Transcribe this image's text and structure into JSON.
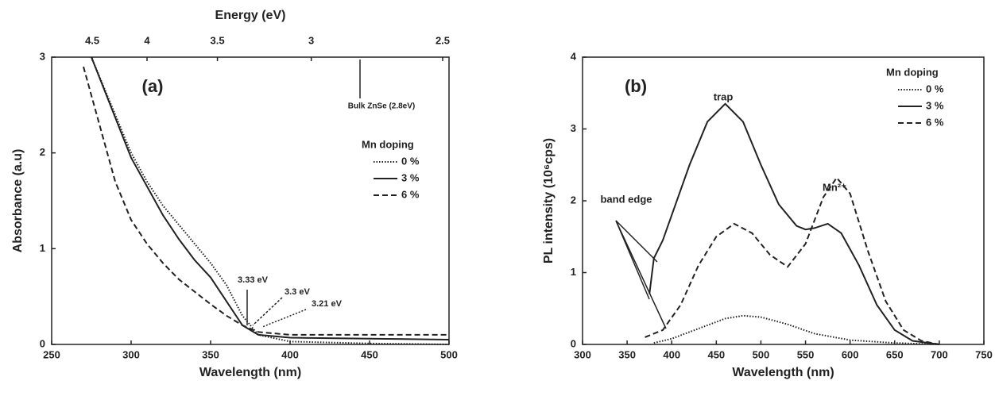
{
  "chart_data": [
    {
      "type": "line",
      "title": "(a)",
      "xlabel": "Wavelength (nm)",
      "ylabel": "Absorbance (a.u)",
      "x2label": "Energy (eV)",
      "xlim": [
        250,
        500
      ],
      "xticks": [
        250,
        300,
        350,
        400,
        450,
        500
      ],
      "ylim": [
        0,
        3
      ],
      "yticks": [
        0,
        1,
        2,
        3
      ],
      "x2ticks": [
        4.5,
        4,
        3.5,
        3,
        2.5
      ],
      "legend_title": "Mn doping",
      "legend": "right",
      "annotations": [
        "Bulk ZnSe (2.8eV)",
        "3.33 eV",
        "3.3 eV",
        "3.21 eV"
      ],
      "series": [
        {
          "name": "0 %",
          "color": "#222222",
          "style": "dotted",
          "x": [
            275,
            300,
            310,
            320,
            330,
            340,
            350,
            360,
            370,
            380,
            400,
            450,
            500
          ],
          "values": [
            3.0,
            2.0,
            1.7,
            1.45,
            1.25,
            1.05,
            0.85,
            0.62,
            0.3,
            0.1,
            0.03,
            0.01,
            0.0
          ]
        },
        {
          "name": "3 %",
          "color": "#222222",
          "style": "solid",
          "x": [
            275,
            300,
            310,
            320,
            330,
            340,
            350,
            360,
            370,
            380,
            400,
            450,
            500
          ],
          "values": [
            3.0,
            1.95,
            1.65,
            1.35,
            1.1,
            0.88,
            0.7,
            0.45,
            0.2,
            0.1,
            0.07,
            0.06,
            0.05
          ]
        },
        {
          "name": "6 %",
          "color": "#222222",
          "style": "dashed",
          "x": [
            270,
            280,
            290,
            300,
            310,
            320,
            330,
            340,
            350,
            360,
            370,
            380,
            400,
            450,
            500
          ],
          "values": [
            2.9,
            2.3,
            1.7,
            1.3,
            1.05,
            0.85,
            0.68,
            0.55,
            0.42,
            0.3,
            0.2,
            0.13,
            0.1,
            0.1,
            0.1
          ]
        }
      ]
    },
    {
      "type": "line",
      "title": "(b)",
      "xlabel": "Wavelength (nm)",
      "ylabel": "PL intensity (10⁶cps)",
      "xlim": [
        300,
        750
      ],
      "xticks": [
        300,
        350,
        400,
        450,
        500,
        550,
        600,
        650,
        700,
        750
      ],
      "ylim": [
        0,
        4
      ],
      "yticks": [
        0,
        1,
        2,
        3,
        4
      ],
      "legend_title": "Mn doping",
      "legend": "upper right",
      "annotations": [
        "trap",
        "band edge",
        "Mn²⁺"
      ],
      "series": [
        {
          "name": "0 %",
          "color": "#222222",
          "style": "dotted",
          "x": [
            380,
            400,
            430,
            460,
            480,
            500,
            530,
            560,
            600,
            650,
            700
          ],
          "values": [
            0.02,
            0.08,
            0.22,
            0.36,
            0.4,
            0.38,
            0.28,
            0.15,
            0.06,
            0.02,
            0.0
          ]
        },
        {
          "name": "3 %",
          "color": "#222222",
          "style": "solid",
          "x": [
            375,
            380,
            390,
            400,
            420,
            440,
            460,
            480,
            500,
            520,
            540,
            550,
            560,
            575,
            590,
            610,
            630,
            650,
            670,
            700
          ],
          "values": [
            0.7,
            1.2,
            1.45,
            1.8,
            2.5,
            3.1,
            3.35,
            3.1,
            2.5,
            1.95,
            1.65,
            1.6,
            1.62,
            1.68,
            1.55,
            1.1,
            0.55,
            0.2,
            0.05,
            0.0
          ]
        },
        {
          "name": "6 %",
          "color": "#222222",
          "style": "dashed",
          "x": [
            370,
            390,
            410,
            430,
            450,
            470,
            490,
            510,
            530,
            550,
            570,
            585,
            600,
            620,
            640,
            660,
            680,
            700
          ],
          "values": [
            0.1,
            0.2,
            0.55,
            1.1,
            1.5,
            1.68,
            1.55,
            1.25,
            1.08,
            1.4,
            2.05,
            2.32,
            2.1,
            1.3,
            0.6,
            0.2,
            0.05,
            0.0
          ]
        }
      ]
    }
  ]
}
